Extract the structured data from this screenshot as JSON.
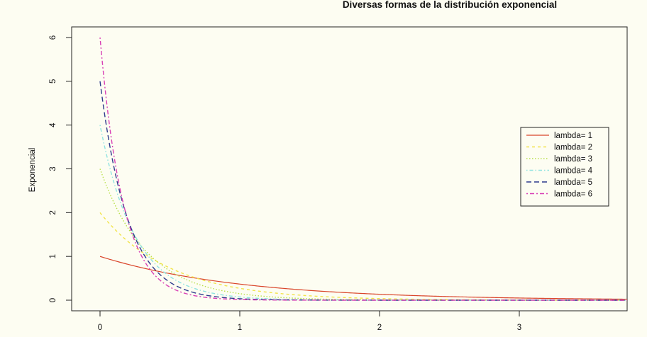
{
  "chart_data": {
    "type": "line",
    "title": "Diversas formas de la distribución exponencial",
    "xlabel": "",
    "ylabel": "Exponencial",
    "xlim": [
      -0.2,
      3.8
    ],
    "ylim": [
      0,
      6
    ],
    "x_ticks": [
      "0",
      "1",
      "2",
      "3"
    ],
    "y_ticks": [
      "0",
      "1",
      "2",
      "3",
      "4",
      "5",
      "6"
    ],
    "grid": false,
    "legend_position": "right",
    "function": "lambda * exp(-lambda * x)",
    "x_domain": [
      0,
      3.8
    ],
    "series": [
      {
        "name": "lambda= 1",
        "lambda": 1,
        "color": "#d9452a",
        "dash": "solid",
        "x": [
          0,
          0.5,
          1,
          2,
          3
        ],
        "values": [
          1.0,
          0.61,
          0.37,
          0.14,
          0.05
        ]
      },
      {
        "name": "lambda= 2",
        "lambda": 2,
        "color": "#f2e44a",
        "dash": "dashed",
        "x": [
          0,
          0.5,
          1,
          2,
          3
        ],
        "values": [
          2.0,
          0.74,
          0.27,
          0.04,
          0.0
        ]
      },
      {
        "name": "lambda= 3",
        "lambda": 3,
        "color": "#b8e04a",
        "dash": "dotted",
        "x": [
          0,
          0.5,
          1,
          2,
          3
        ],
        "values": [
          3.0,
          0.67,
          0.15,
          0.01,
          0.0
        ]
      },
      {
        "name": "lambda= 4",
        "lambda": 4,
        "color": "#8fe3e0",
        "dash": "dotdash",
        "x": [
          0,
          0.5,
          1,
          2,
          3
        ],
        "values": [
          4.0,
          0.54,
          0.07,
          0.0,
          0.0
        ]
      },
      {
        "name": "lambda= 5",
        "lambda": 5,
        "color": "#2d3a8c",
        "dash": "longdash",
        "x": [
          0,
          0.5,
          1,
          2,
          3
        ],
        "values": [
          5.0,
          0.41,
          0.03,
          0.0,
          0.0
        ]
      },
      {
        "name": "lambda= 6",
        "lambda": 6,
        "color": "#d83fb5",
        "dash": "twodash",
        "x": [
          0,
          0.5,
          1,
          2,
          3
        ],
        "values": [
          6.0,
          0.3,
          0.01,
          0.0,
          0.0
        ]
      }
    ]
  }
}
